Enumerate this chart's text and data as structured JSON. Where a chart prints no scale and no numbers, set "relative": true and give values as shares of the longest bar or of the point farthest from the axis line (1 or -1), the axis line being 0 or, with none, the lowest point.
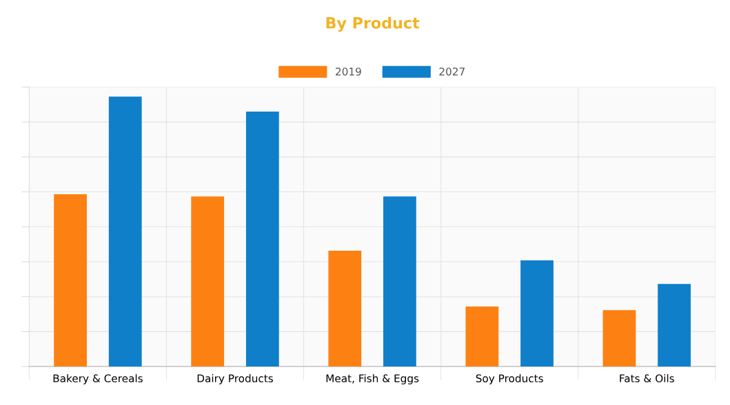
{
  "chart_data": {
    "type": "bar",
    "title": "By Product",
    "relative": true,
    "categories": [
      "Bakery & Cereals",
      "Dairy Products",
      "Meat, Fish & Eggs",
      "Soy Products",
      "Fats & Oils"
    ],
    "series": [
      {
        "name": "2019",
        "color": "#fd8112",
        "values": [
          0.638,
          0.63,
          0.429,
          0.222,
          0.209
        ]
      },
      {
        "name": "2027",
        "color": "#0f7fca",
        "values": [
          1,
          0.944,
          0.63,
          0.393,
          0.306
        ]
      }
    ],
    "grid": true,
    "legend": "top"
  }
}
